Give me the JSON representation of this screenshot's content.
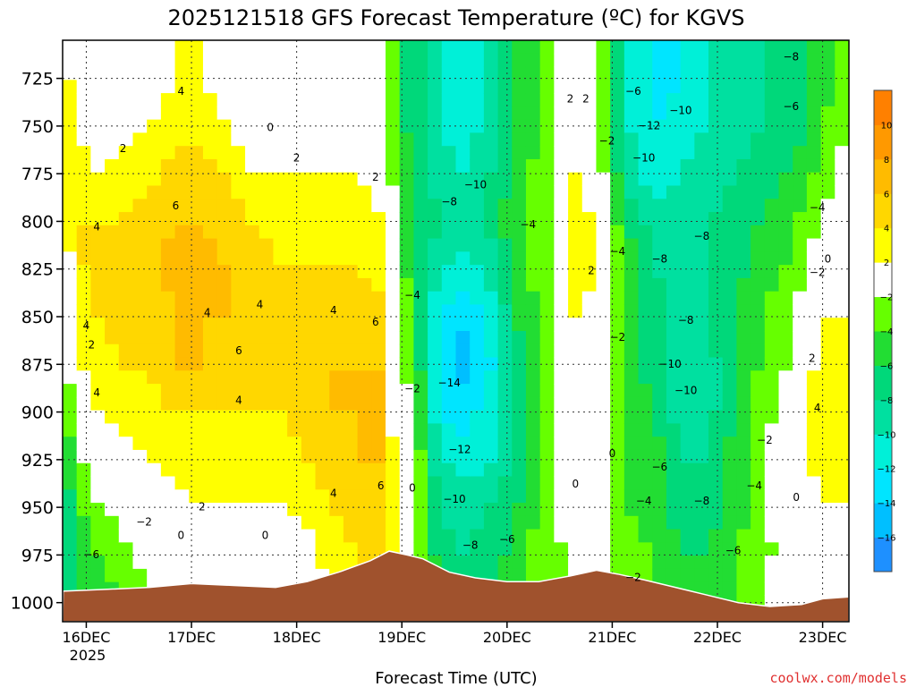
{
  "chart_data": {
    "type": "heatmap",
    "title": "2025121518 GFS Forecast Temperature (ºC) for KGVS",
    "xlabel": "Forecast Time (UTC)",
    "ylabel": "",
    "credit": "coolwx.com/models",
    "x_ticks": [
      {
        "day": 16,
        "label": "16DEC"
      },
      {
        "day": 17,
        "label": "17DEC"
      },
      {
        "day": 18,
        "label": "18DEC"
      },
      {
        "day": 19,
        "label": "19DEC"
      },
      {
        "day": 20,
        "label": "20DEC"
      },
      {
        "day": 21,
        "label": "21DEC"
      },
      {
        "day": 22,
        "label": "22DEC"
      },
      {
        "day": 23,
        "label": "23DEC"
      }
    ],
    "x_sublabel": "2025",
    "xlim_days": [
      15.775,
      23.25
    ],
    "y_ticks": [
      725,
      750,
      775,
      800,
      825,
      850,
      875,
      900,
      925,
      950,
      975,
      1000
    ],
    "ylim_hPa": [
      705,
      1010
    ],
    "colorbar": {
      "levels": [
        -16,
        -14,
        -12,
        -10,
        -8,
        -6,
        -4,
        -2,
        2,
        4,
        6,
        8,
        10
      ],
      "colors": [
        "#1e90ff",
        "#00bfff",
        "#00e5ff",
        "#00f0d8",
        "#00e0a0",
        "#00d87a",
        "#22dd33",
        "#66ff00",
        "#ffffff",
        "#ffff00",
        "#ffd700",
        "#ffbb00",
        "#ff9900",
        "#ff8000"
      ]
    },
    "temperature_columns": [
      {
        "day": 15.78,
        "v": [
          3,
          3,
          2,
          1,
          -1,
          -3,
          -5,
          -6,
          -7,
          -8,
          -9,
          -9
        ]
      },
      {
        "day": 15.9,
        "v": [
          1,
          2,
          3,
          4,
          4,
          3,
          2,
          0,
          -3,
          -5,
          -6,
          -7
        ]
      },
      {
        "day": 16.1,
        "v": [
          0,
          1,
          2,
          4,
          4,
          4,
          3,
          2,
          0,
          -2,
          -4,
          -5
        ]
      },
      {
        "day": 16.35,
        "v": [
          0,
          1,
          3,
          4,
          5,
          5,
          4,
          3,
          1,
          -1,
          -3,
          -4
        ]
      },
      {
        "day": 16.6,
        "v": [
          1,
          2,
          3,
          5,
          5,
          5,
          4,
          3,
          2,
          1,
          -1,
          -2
        ]
      },
      {
        "day": 16.85,
        "v": [
          2,
          3,
          5,
          6,
          7,
          6,
          6,
          4,
          3,
          1,
          0,
          -1
        ]
      },
      {
        "day": 17.1,
        "v": [
          2,
          3,
          5,
          6,
          7,
          6,
          6,
          4,
          3,
          2,
          0,
          0
        ]
      },
      {
        "day": 17.35,
        "v": [
          1,
          2,
          4,
          5,
          6,
          6,
          5,
          4,
          3,
          2,
          1,
          0
        ]
      },
      {
        "day": 17.6,
        "v": [
          -1,
          0,
          2,
          4,
          5,
          5,
          5,
          4,
          3,
          2,
          1,
          0
        ]
      },
      {
        "day": 17.85,
        "v": [
          -2,
          0,
          2,
          3,
          4,
          4,
          5,
          4,
          3,
          2,
          0,
          -1
        ]
      },
      {
        "day": 18.1,
        "v": [
          -1,
          1,
          2,
          3,
          4,
          5,
          5,
          5,
          4,
          3,
          1,
          0
        ]
      },
      {
        "day": 18.35,
        "v": [
          0,
          1,
          2,
          3,
          4,
          5,
          6,
          6,
          5,
          4,
          3,
          2
        ]
      },
      {
        "day": 18.6,
        "v": [
          -1,
          0,
          2,
          3,
          4,
          5,
          6,
          6,
          6,
          5,
          4,
          3
        ]
      },
      {
        "day": 18.85,
        "v": [
          -2,
          -1,
          1,
          2,
          3,
          5,
          6,
          6,
          6,
          6,
          5,
          4
        ]
      },
      {
        "day": 18.95,
        "v": [
          -5,
          -5,
          -4,
          -4,
          -3,
          -2,
          -1,
          -1,
          0,
          1,
          2,
          3
        ]
      },
      {
        "day": 19.1,
        "v": [
          -7,
          -7,
          -6,
          -5,
          -5,
          -4,
          -3,
          -2,
          -1,
          0,
          0,
          0
        ]
      },
      {
        "day": 19.35,
        "v": [
          -10,
          -10,
          -9,
          -8,
          -10,
          -12,
          -13,
          -12,
          -10,
          -8,
          -7,
          -6
        ]
      },
      {
        "day": 19.6,
        "v": [
          -12,
          -11,
          -10,
          -9,
          -11,
          -14,
          -15,
          -13,
          -11,
          -9,
          -8,
          -7
        ]
      },
      {
        "day": 19.85,
        "v": [
          -9,
          -9,
          -8,
          -7,
          -9,
          -11,
          -12,
          -11,
          -10,
          -8,
          -7,
          -6
        ]
      },
      {
        "day": 20.1,
        "v": [
          -6,
          -6,
          -5,
          -4,
          -5,
          -6,
          -7,
          -7,
          -7,
          -6,
          -5,
          -4
        ]
      },
      {
        "day": 20.35,
        "v": [
          -4,
          -4,
          -3,
          -3,
          -3,
          -3,
          -3,
          -3,
          -3,
          -3,
          -3,
          -3
        ]
      },
      {
        "day": 20.55,
        "v": [
          0,
          1,
          2,
          2,
          2,
          2,
          1,
          1,
          0,
          -1,
          -2,
          -2
        ]
      },
      {
        "day": 20.75,
        "v": [
          -1,
          1,
          2,
          3,
          3,
          2,
          1,
          0,
          0,
          -1,
          -1,
          -2
        ]
      },
      {
        "day": 20.95,
        "v": [
          -4,
          -4,
          -3,
          -2,
          -2,
          -1,
          -1,
          -1,
          0,
          -1,
          -2,
          -2
        ]
      },
      {
        "day": 21.15,
        "v": [
          -10,
          -10,
          -9,
          -6,
          -5,
          -5,
          -5,
          -5,
          -4,
          -4,
          -3,
          -3
        ]
      },
      {
        "day": 21.4,
        "v": [
          -13,
          -12,
          -11,
          -9,
          -8,
          -7,
          -7,
          -6,
          -5,
          -5,
          -4,
          -4
        ]
      },
      {
        "day": 21.65,
        "v": [
          -12,
          -11,
          -10,
          -9,
          -9,
          -9,
          -10,
          -9,
          -8,
          -7,
          -6,
          -5
        ]
      },
      {
        "day": 21.9,
        "v": [
          -10,
          -10,
          -9,
          -8,
          -8,
          -8,
          -9,
          -9,
          -8,
          -7,
          -6,
          -5
        ]
      },
      {
        "day": 22.15,
        "v": [
          -9,
          -9,
          -8,
          -7,
          -7,
          -6,
          -6,
          -6,
          -5,
          -5,
          -4,
          -4
        ]
      },
      {
        "day": 22.4,
        "v": [
          -8,
          -8,
          -7,
          -6,
          -5,
          -4,
          -4,
          -3,
          -3,
          -3,
          -3,
          -2
        ]
      },
      {
        "day": 22.65,
        "v": [
          -7,
          -7,
          -6,
          -5,
          -4,
          -3,
          -2,
          -1,
          0,
          0,
          -1,
          -1
        ]
      },
      {
        "day": 22.85,
        "v": [
          -6,
          -6,
          -5,
          -3,
          -2,
          0,
          1,
          2,
          2,
          1,
          0,
          0
        ]
      },
      {
        "day": 23.0,
        "v": [
          -5,
          -4,
          -3,
          -2,
          0,
          2,
          3,
          3,
          3,
          2,
          1,
          1
        ]
      },
      {
        "day": 23.25,
        "v": [
          -3,
          -2,
          -1,
          0,
          1,
          2,
          3,
          3,
          3,
          2,
          1,
          1
        ]
      }
    ],
    "surface_pressure": [
      {
        "day": 15.78,
        "p": 994
      },
      {
        "day": 16.2,
        "p": 993
      },
      {
        "day": 16.6,
        "p": 992
      },
      {
        "day": 17.0,
        "p": 990
      },
      {
        "day": 17.4,
        "p": 991
      },
      {
        "day": 17.8,
        "p": 992
      },
      {
        "day": 18.1,
        "p": 989
      },
      {
        "day": 18.4,
        "p": 984
      },
      {
        "day": 18.7,
        "p": 978
      },
      {
        "day": 18.88,
        "p": 973
      },
      {
        "day": 19.05,
        "p": 975
      },
      {
        "day": 19.2,
        "p": 977
      },
      {
        "day": 19.45,
        "p": 984
      },
      {
        "day": 19.7,
        "p": 987
      },
      {
        "day": 20.0,
        "p": 989
      },
      {
        "day": 20.3,
        "p": 989
      },
      {
        "day": 20.6,
        "p": 986
      },
      {
        "day": 20.85,
        "p": 983
      },
      {
        "day": 21.05,
        "p": 985
      },
      {
        "day": 21.3,
        "p": 988
      },
      {
        "day": 21.6,
        "p": 992
      },
      {
        "day": 21.9,
        "p": 996
      },
      {
        "day": 22.2,
        "p": 1000
      },
      {
        "day": 22.5,
        "p": 1002
      },
      {
        "day": 22.8,
        "p": 1001
      },
      {
        "day": 23.0,
        "p": 998
      },
      {
        "day": 23.25,
        "p": 997
      }
    ],
    "contour_labels": [
      {
        "t": "4",
        "day": 16.9,
        "p": 732
      },
      {
        "t": "2",
        "day": 16.35,
        "p": 762
      },
      {
        "t": "0",
        "day": 17.75,
        "p": 751
      },
      {
        "t": "2",
        "day": 18.0,
        "p": 767
      },
      {
        "t": "2",
        "day": 18.75,
        "p": 777
      },
      {
        "t": "6",
        "day": 16.85,
        "p": 792
      },
      {
        "t": "4",
        "day": 16.1,
        "p": 803
      },
      {
        "t": "4",
        "day": 17.65,
        "p": 844
      },
      {
        "t": "4",
        "day": 17.15,
        "p": 848
      },
      {
        "t": "4",
        "day": 18.35,
        "p": 847
      },
      {
        "t": "6",
        "day": 18.75,
        "p": 853
      },
      {
        "t": "4",
        "day": 16.0,
        "p": 855
      },
      {
        "t": "2",
        "day": 16.05,
        "p": 865
      },
      {
        "t": "6",
        "day": 17.45,
        "p": 868
      },
      {
        "t": "4",
        "day": 17.45,
        "p": 894
      },
      {
        "t": "4",
        "day": 16.1,
        "p": 890
      },
      {
        "t": "6",
        "day": 18.8,
        "p": 939
      },
      {
        "t": "4",
        "day": 18.35,
        "p": 943
      },
      {
        "t": "2",
        "day": 17.1,
        "p": 950
      },
      {
        "t": "0",
        "day": 16.9,
        "p": 965
      },
      {
        "t": "0",
        "day": 17.7,
        "p": 965
      },
      {
        "t": "−2",
        "day": 16.55,
        "p": 958
      },
      {
        "t": "−6",
        "day": 16.05,
        "p": 975
      },
      {
        "t": "0",
        "day": 19.1,
        "p": 940
      },
      {
        "t": "−2",
        "day": 19.1,
        "p": 888
      },
      {
        "t": "−4",
        "day": 19.1,
        "p": 839
      },
      {
        "t": "−10",
        "day": 19.7,
        "p": 781
      },
      {
        "t": "−8",
        "day": 19.45,
        "p": 790
      },
      {
        "t": "−14",
        "day": 19.45,
        "p": 885
      },
      {
        "t": "−12",
        "day": 19.55,
        "p": 920
      },
      {
        "t": "−10",
        "day": 19.5,
        "p": 946
      },
      {
        "t": "−8",
        "day": 19.65,
        "p": 970
      },
      {
        "t": "−6",
        "day": 20.0,
        "p": 967
      },
      {
        "t": "−4",
        "day": 20.2,
        "p": 802
      },
      {
        "t": "2",
        "day": 20.6,
        "p": 736
      },
      {
        "t": "2",
        "day": 20.75,
        "p": 736
      },
      {
        "t": "−2",
        "day": 20.95,
        "p": 758
      },
      {
        "t": "2",
        "day": 20.8,
        "p": 826
      },
      {
        "t": "0",
        "day": 20.65,
        "p": 938
      },
      {
        "t": "0",
        "day": 21.0,
        "p": 922
      },
      {
        "t": "−2",
        "day": 21.05,
        "p": 861
      },
      {
        "t": "−4",
        "day": 21.05,
        "p": 816
      },
      {
        "t": "−6",
        "day": 21.2,
        "p": 732
      },
      {
        "t": "−12",
        "day": 21.35,
        "p": 750
      },
      {
        "t": "−10",
        "day": 21.65,
        "p": 742
      },
      {
        "t": "−10",
        "day": 21.3,
        "p": 767
      },
      {
        "t": "−8",
        "day": 21.45,
        "p": 820
      },
      {
        "t": "−8",
        "day": 21.7,
        "p": 852
      },
      {
        "t": "−10",
        "day": 21.55,
        "p": 875
      },
      {
        "t": "−10",
        "day": 21.7,
        "p": 889
      },
      {
        "t": "−8",
        "day": 21.85,
        "p": 808
      },
      {
        "t": "−6",
        "day": 21.45,
        "p": 929
      },
      {
        "t": "−4",
        "day": 21.3,
        "p": 947
      },
      {
        "t": "−8",
        "day": 21.85,
        "p": 947
      },
      {
        "t": "−2",
        "day": 21.2,
        "p": 987
      },
      {
        "t": "−6",
        "day": 22.15,
        "p": 973
      },
      {
        "t": "−4",
        "day": 22.35,
        "p": 939
      },
      {
        "t": "−2",
        "day": 22.45,
        "p": 915
      },
      {
        "t": "0",
        "day": 22.75,
        "p": 945
      },
      {
        "t": "−8",
        "day": 22.7,
        "p": 714
      },
      {
        "t": "−6",
        "day": 22.7,
        "p": 740
      },
      {
        "t": "−4",
        "day": 22.95,
        "p": 793
      },
      {
        "t": "0",
        "day": 23.05,
        "p": 820
      },
      {
        "t": "−2",
        "day": 22.95,
        "p": 827
      },
      {
        "t": "2",
        "day": 22.9,
        "p": 872
      },
      {
        "t": "4",
        "day": 22.95,
        "p": 898
      }
    ]
  }
}
